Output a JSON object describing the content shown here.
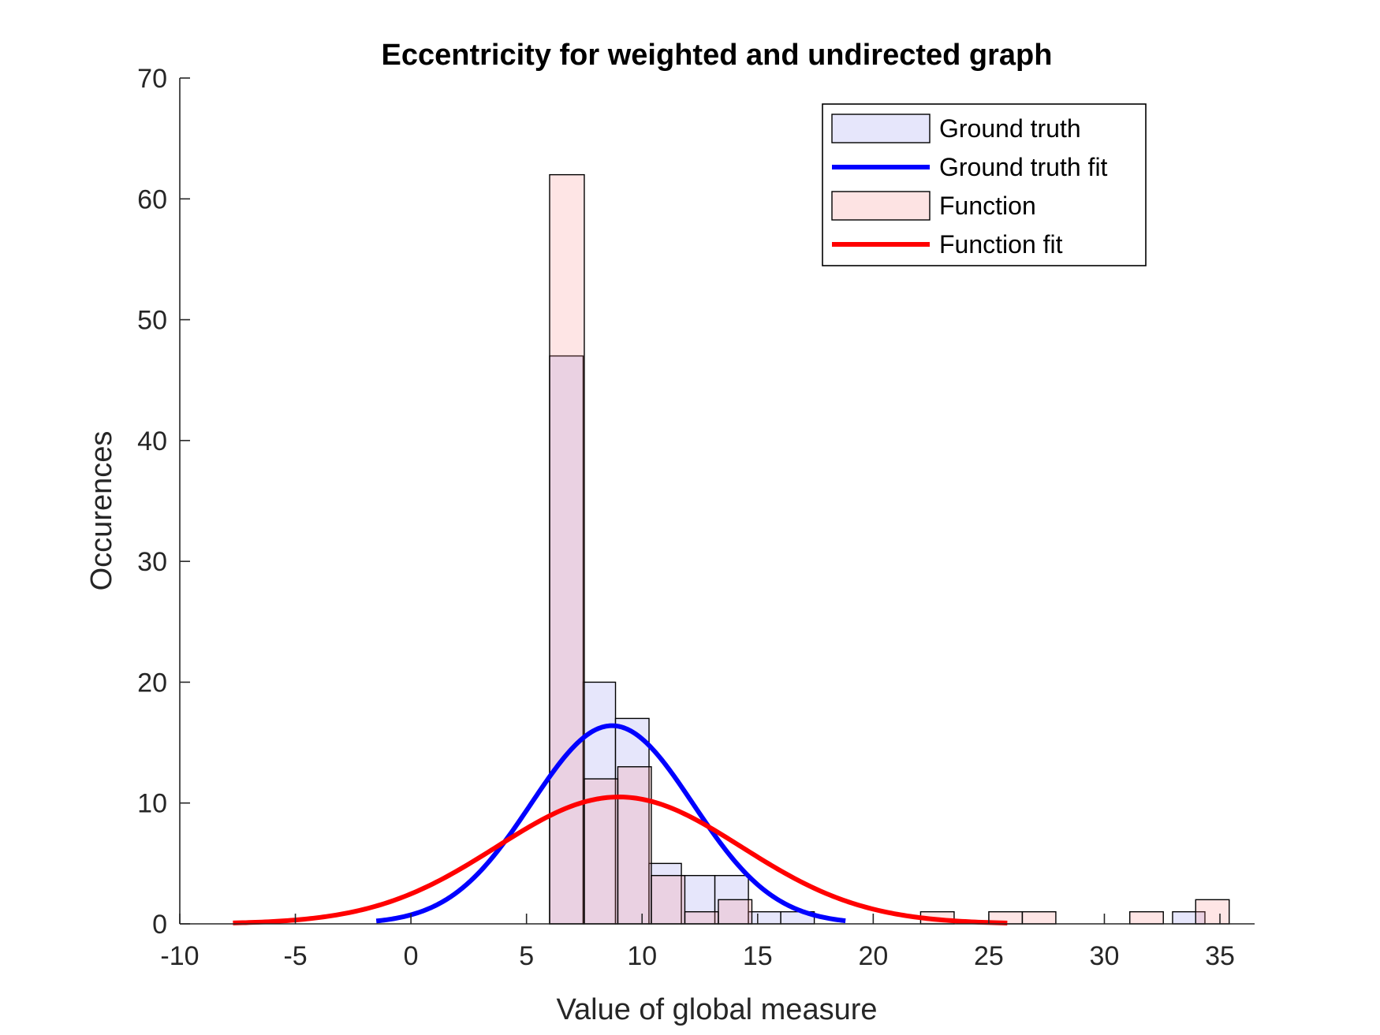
{
  "chart_data": {
    "type": "bar",
    "title": "Eccentricity for weighted and undirected graph",
    "xlabel": "Value of global measure",
    "ylabel": "Occurences",
    "xlim": [
      -10,
      36.5
    ],
    "ylim": [
      0,
      70
    ],
    "x_ticks": [
      -10,
      -5,
      0,
      5,
      10,
      15,
      20,
      25,
      30,
      35
    ],
    "y_ticks": [
      0,
      10,
      20,
      30,
      40,
      50,
      60,
      70
    ],
    "legend_position": "top-right",
    "colors": {
      "ground_truth_fill": "#e6e6fb",
      "function_fill": "#fde3e3",
      "overlap_fill": "#e6d1e4",
      "ground_truth_fit": "#0000ff",
      "function_fit": "#ff0000",
      "edge": "#000000",
      "axis": "#262626"
    },
    "series": [
      {
        "name": "Ground truth",
        "kind": "histogram",
        "bins": [
          {
            "x0": 6.0,
            "x1": 7.45,
            "count": 47
          },
          {
            "x0": 7.45,
            "x1": 8.85,
            "count": 20
          },
          {
            "x0": 8.85,
            "x1": 10.3,
            "count": 17
          },
          {
            "x0": 10.3,
            "x1": 11.7,
            "count": 5
          },
          {
            "x0": 11.7,
            "x1": 13.15,
            "count": 4
          },
          {
            "x0": 13.15,
            "x1": 14.6,
            "count": 4
          },
          {
            "x0": 14.6,
            "x1": 16.0,
            "count": 1
          },
          {
            "x0": 16.0,
            "x1": 17.45,
            "count": 1
          },
          {
            "x0": 32.95,
            "x1": 34.35,
            "count": 1
          }
        ]
      },
      {
        "name": "Ground truth fit",
        "kind": "normal_fit",
        "peak": 16.4,
        "mean": 8.7,
        "sigma": 3.5,
        "range": [
          -1.5,
          18.8
        ]
      },
      {
        "name": "Function",
        "kind": "histogram",
        "bins": [
          {
            "x0": 6.0,
            "x1": 7.5,
            "count": 62
          },
          {
            "x0": 7.5,
            "x1": 8.95,
            "count": 12
          },
          {
            "x0": 8.95,
            "x1": 10.4,
            "count": 13
          },
          {
            "x0": 10.4,
            "x1": 11.85,
            "count": 4
          },
          {
            "x0": 11.85,
            "x1": 13.3,
            "count": 1
          },
          {
            "x0": 13.3,
            "x1": 14.75,
            "count": 2
          },
          {
            "x0": 22.05,
            "x1": 23.5,
            "count": 1
          },
          {
            "x0": 25.0,
            "x1": 26.45,
            "count": 1
          },
          {
            "x0": 26.45,
            "x1": 27.9,
            "count": 1
          },
          {
            "x0": 31.1,
            "x1": 32.55,
            "count": 1
          },
          {
            "x0": 33.95,
            "x1": 35.4,
            "count": 2
          }
        ]
      },
      {
        "name": "Function fit",
        "kind": "normal_fit",
        "peak": 10.5,
        "mean": 9.0,
        "sigma": 5.3,
        "range": [
          -7.7,
          25.8
        ]
      }
    ]
  }
}
